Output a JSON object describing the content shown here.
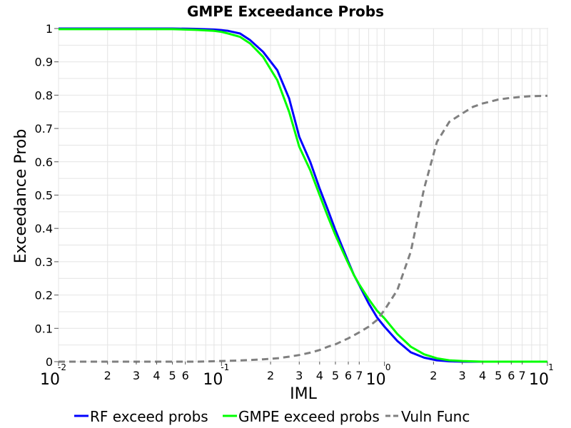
{
  "chart_data": {
    "type": "line",
    "title": "GMPE Exceedance Probs",
    "xlabel": "IML",
    "ylabel": "Exceedance Prob",
    "xscale": "log",
    "xlim": [
      0.01,
      10
    ],
    "ylim": [
      0,
      1
    ],
    "grid": true,
    "legend": "bottom",
    "y_ticks": [
      {
        "value": 0,
        "label": "0"
      },
      {
        "value": 0.1,
        "label": "0.1"
      },
      {
        "value": 0.2,
        "label": "0.2"
      },
      {
        "value": 0.3,
        "label": "0.3"
      },
      {
        "value": 0.4,
        "label": "0.4"
      },
      {
        "value": 0.5,
        "label": "0.5"
      },
      {
        "value": 0.6,
        "label": "0.6"
      },
      {
        "value": 0.7,
        "label": "0.7"
      },
      {
        "value": 0.8,
        "label": "0.8"
      },
      {
        "value": 0.9,
        "label": "0.9"
      },
      {
        "value": 1,
        "label": "1"
      }
    ],
    "x_major_ticks": [
      {
        "value": 0.01,
        "base": "10",
        "exp": "-2"
      },
      {
        "value": 0.1,
        "base": "10",
        "exp": "-1"
      },
      {
        "value": 1,
        "base": "10",
        "exp": "0"
      },
      {
        "value": 10,
        "base": "10",
        "exp": "1"
      }
    ],
    "x_minor_ticks": [
      {
        "value": 0.02,
        "label": "2"
      },
      {
        "value": 0.03,
        "label": "3"
      },
      {
        "value": 0.04,
        "label": "4"
      },
      {
        "value": 0.05,
        "label": "5"
      },
      {
        "value": 0.06,
        "label": "6"
      },
      {
        "value": 0.2,
        "label": "2"
      },
      {
        "value": 0.3,
        "label": "3"
      },
      {
        "value": 0.4,
        "label": "4"
      },
      {
        "value": 0.5,
        "label": "5"
      },
      {
        "value": 0.6,
        "label": "6"
      },
      {
        "value": 0.7,
        "label": "7"
      },
      {
        "value": 2,
        "label": "2"
      },
      {
        "value": 3,
        "label": "3"
      },
      {
        "value": 4,
        "label": "4"
      },
      {
        "value": 5,
        "label": "5"
      },
      {
        "value": 6,
        "label": "6"
      },
      {
        "value": 7,
        "label": "7"
      }
    ],
    "series": [
      {
        "name": "RF exceed probs",
        "color": "#0000ff",
        "dash": "solid",
        "x": [
          0.01,
          0.05,
          0.07,
          0.09,
          0.1,
          0.11,
          0.13,
          0.15,
          0.18,
          0.22,
          0.26,
          0.3,
          0.35,
          0.4,
          0.45,
          0.5,
          0.55,
          0.6,
          0.65,
          0.7,
          0.8,
          0.9,
          1.0,
          1.2,
          1.45,
          1.75,
          2.1,
          2.5,
          3.0,
          4.0,
          5.0,
          10.0
        ],
        "y": [
          1.0,
          1.0,
          0.999,
          0.997,
          0.995,
          0.993,
          0.985,
          0.965,
          0.93,
          0.875,
          0.79,
          0.675,
          0.6,
          0.52,
          0.455,
          0.395,
          0.345,
          0.3,
          0.26,
          0.23,
          0.175,
          0.133,
          0.105,
          0.062,
          0.028,
          0.012,
          0.004,
          0.001,
          0.0,
          0.0,
          0.0,
          0.0
        ]
      },
      {
        "name": "GMPE exceed probs",
        "color": "#00ff00",
        "dash": "solid",
        "x": [
          0.01,
          0.05,
          0.07,
          0.09,
          0.1,
          0.11,
          0.13,
          0.15,
          0.18,
          0.22,
          0.26,
          0.3,
          0.35,
          0.4,
          0.45,
          0.5,
          0.55,
          0.6,
          0.65,
          0.7,
          0.8,
          0.9,
          1.0,
          1.2,
          1.45,
          1.75,
          2.1,
          2.5,
          3.0,
          4.0,
          5.0,
          10.0
        ],
        "y": [
          0.998,
          0.998,
          0.996,
          0.993,
          0.99,
          0.985,
          0.975,
          0.955,
          0.915,
          0.845,
          0.75,
          0.645,
          0.575,
          0.5,
          0.435,
          0.38,
          0.335,
          0.295,
          0.26,
          0.232,
          0.188,
          0.153,
          0.13,
          0.083,
          0.045,
          0.022,
          0.01,
          0.004,
          0.002,
          0.0,
          0.0,
          0.0
        ]
      },
      {
        "name": "Vuln Func",
        "color": "#808080",
        "dash": "dashed",
        "x": [
          0.01,
          0.07,
          0.1,
          0.12,
          0.15,
          0.18,
          0.22,
          0.26,
          0.3,
          0.35,
          0.4,
          0.45,
          0.5,
          0.6,
          0.7,
          0.8,
          0.9,
          1.0,
          1.2,
          1.45,
          1.75,
          2.1,
          2.5,
          3.0,
          3.5,
          4.0,
          5.0,
          6.0,
          7.0,
          8.0,
          10.0
        ],
        "y": [
          0.0,
          0.0,
          0.002,
          0.003,
          0.005,
          0.007,
          0.01,
          0.015,
          0.02,
          0.027,
          0.035,
          0.045,
          0.052,
          0.07,
          0.088,
          0.105,
          0.125,
          0.155,
          0.215,
          0.33,
          0.52,
          0.66,
          0.72,
          0.745,
          0.765,
          0.775,
          0.787,
          0.792,
          0.795,
          0.797,
          0.798
        ]
      }
    ]
  }
}
